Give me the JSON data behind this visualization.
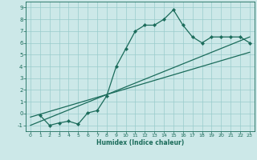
{
  "title": "",
  "xlabel": "Humidex (Indice chaleur)",
  "bg_color": "#cce8e8",
  "grid_color": "#99cccc",
  "line_color": "#1a6b5a",
  "xlim": [
    -0.5,
    23.5
  ],
  "ylim": [
    -1.5,
    9.5
  ],
  "xticks": [
    0,
    1,
    2,
    3,
    4,
    5,
    6,
    7,
    8,
    9,
    10,
    11,
    12,
    13,
    14,
    15,
    16,
    17,
    18,
    19,
    20,
    21,
    22,
    23
  ],
  "yticks": [
    -1,
    0,
    1,
    2,
    3,
    4,
    5,
    6,
    7,
    8,
    9
  ],
  "data_x": [
    1,
    2,
    3,
    4,
    5,
    6,
    7,
    8,
    9,
    10,
    11,
    12,
    13,
    14,
    15,
    16,
    17,
    18,
    19,
    20,
    21,
    22,
    23
  ],
  "data_y": [
    -0.15,
    -1.0,
    -0.8,
    -0.65,
    -0.9,
    0.05,
    0.25,
    1.5,
    4.0,
    5.5,
    7.0,
    7.5,
    7.5,
    8.0,
    8.8,
    7.5,
    6.5,
    6.0,
    6.5,
    6.5,
    6.5,
    6.5,
    6.0
  ],
  "line1_x": [
    0,
    23
  ],
  "line1_y": [
    -1.0,
    6.5
  ],
  "line2_x": [
    0,
    23
  ],
  "line2_y": [
    -0.3,
    5.2
  ]
}
